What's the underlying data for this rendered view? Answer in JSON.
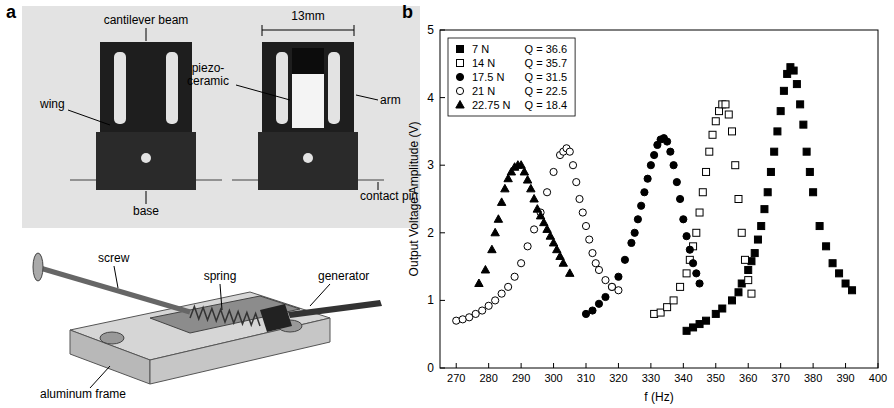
{
  "panel_a": {
    "letter": "a",
    "photo_labels": {
      "cantilever_beam": "cantilever beam",
      "width": "13mm",
      "wing": "wing",
      "piezo_ceramic": "piezo-\nceramic",
      "arm": "arm",
      "base": "base",
      "contact_pin": "contact pin"
    },
    "drawing_labels": {
      "screw": "screw",
      "spring": "spring",
      "generator": "generator",
      "aluminum_frame": "aluminum frame"
    }
  },
  "panel_b": {
    "letter": "b"
  },
  "chart_data": {
    "type": "scatter",
    "x_label": "f (Hz)",
    "y_label": "Output Voltage Amplitude (V)",
    "xlim": [
      265,
      400
    ],
    "xticks": [
      270,
      280,
      290,
      300,
      310,
      320,
      330,
      340,
      350,
      360,
      370,
      380,
      390,
      400
    ],
    "ylim": [
      0,
      5
    ],
    "yticks": [
      0,
      1,
      2,
      3,
      4,
      5
    ],
    "legend": "top-left",
    "series": [
      {
        "name": "7 N",
        "q_label": "Q = 36.6",
        "color": "#000000",
        "marker": "filled-square",
        "x": [
          341,
          343,
          345,
          347,
          350,
          352,
          355,
          357,
          358,
          360,
          361,
          362,
          363,
          364,
          365,
          366,
          367,
          368,
          369,
          370,
          371,
          372,
          373,
          374,
          375,
          376,
          377,
          378,
          379,
          380,
          382,
          384,
          386,
          388,
          390,
          392
        ],
        "values": [
          0.55,
          0.6,
          0.65,
          0.7,
          0.8,
          0.88,
          1.0,
          1.12,
          1.25,
          1.45,
          1.58,
          1.7,
          1.9,
          2.1,
          2.35,
          2.6,
          2.9,
          3.2,
          3.5,
          3.8,
          4.1,
          4.35,
          4.45,
          4.4,
          4.2,
          3.9,
          3.6,
          3.2,
          2.9,
          2.6,
          2.1,
          1.8,
          1.55,
          1.4,
          1.25,
          1.15
        ]
      },
      {
        "name": "14 N",
        "q_label": "Q = 35.7",
        "color": "#000000",
        "marker": "open-square",
        "x": [
          331,
          333,
          335,
          337,
          339,
          341,
          342,
          343,
          344,
          345,
          346,
          347,
          348,
          349,
          350,
          351,
          352,
          353,
          354,
          355,
          356,
          357,
          358,
          359,
          360,
          361
        ],
        "values": [
          0.8,
          0.82,
          0.9,
          1.0,
          1.2,
          1.4,
          1.6,
          1.8,
          2.0,
          2.3,
          2.6,
          2.9,
          3.2,
          3.45,
          3.65,
          3.8,
          3.9,
          3.9,
          3.75,
          3.5,
          3.0,
          2.5,
          2.0,
          1.6,
          1.3,
          1.1
        ]
      },
      {
        "name": "17.5 N",
        "q_label": "Q = 31.5",
        "color": "#000000",
        "marker": "filled-circle",
        "x": [
          310,
          312,
          314,
          316,
          318,
          320,
          322,
          324,
          325,
          326,
          327,
          328,
          329,
          330,
          331,
          332,
          333,
          334,
          335,
          336,
          337,
          338,
          339,
          340,
          341,
          342,
          343,
          344,
          345
        ],
        "values": [
          0.8,
          0.85,
          0.95,
          1.05,
          1.2,
          1.35,
          1.6,
          1.85,
          2.0,
          2.2,
          2.4,
          2.6,
          2.8,
          3.0,
          3.15,
          3.3,
          3.38,
          3.4,
          3.35,
          3.2,
          3.0,
          2.75,
          2.5,
          2.2,
          1.95,
          1.75,
          1.55,
          1.4,
          1.25
        ]
      },
      {
        "name": "21 N",
        "q_label": "Q = 22.5",
        "color": "#000000",
        "marker": "open-circle",
        "x": [
          270,
          272,
          274,
          276,
          278,
          280,
          282,
          284,
          286,
          288,
          290,
          292,
          294,
          296,
          298,
          300,
          302,
          303,
          304,
          305,
          306,
          307,
          308,
          309,
          310,
          311,
          312,
          313,
          314,
          316,
          318,
          320
        ],
        "values": [
          0.7,
          0.72,
          0.75,
          0.8,
          0.85,
          0.92,
          1.0,
          1.1,
          1.2,
          1.35,
          1.55,
          1.8,
          2.05,
          2.3,
          2.6,
          2.9,
          3.15,
          3.2,
          3.25,
          3.2,
          3.0,
          2.75,
          2.5,
          2.3,
          2.1,
          1.9,
          1.7,
          1.55,
          1.45,
          1.3,
          1.2,
          1.15
        ]
      },
      {
        "name": "22.75 N",
        "q_label": "Q = 18.4",
        "color": "#000000",
        "marker": "filled-triangle",
        "x": [
          277,
          279,
          281,
          282,
          283,
          284,
          285,
          286,
          287,
          288,
          289,
          290,
          291,
          292,
          293,
          294,
          295,
          296,
          297,
          298,
          299,
          300,
          301,
          302,
          303,
          305
        ],
        "values": [
          1.25,
          1.45,
          1.75,
          2.0,
          2.2,
          2.45,
          2.65,
          2.8,
          2.9,
          2.97,
          3.0,
          3.0,
          2.9,
          2.78,
          2.65,
          2.5,
          2.35,
          2.25,
          2.15,
          2.05,
          1.95,
          1.85,
          1.75,
          1.65,
          1.55,
          1.4
        ]
      }
    ]
  }
}
